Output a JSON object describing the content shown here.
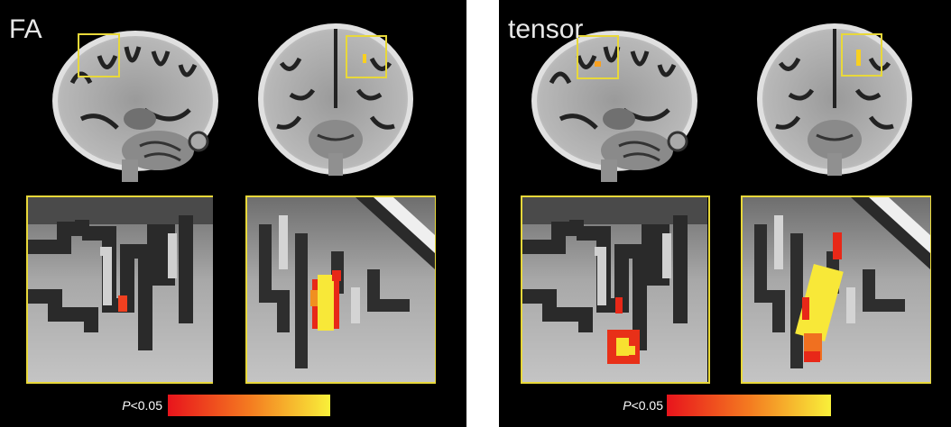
{
  "panels": [
    {
      "label": "FA",
      "colorbar": {
        "symbol": "P",
        "threshold": "<0.05"
      }
    },
    {
      "label": "tensor",
      "colorbar": {
        "symbol": "P",
        "threshold": "<0.05"
      }
    }
  ]
}
